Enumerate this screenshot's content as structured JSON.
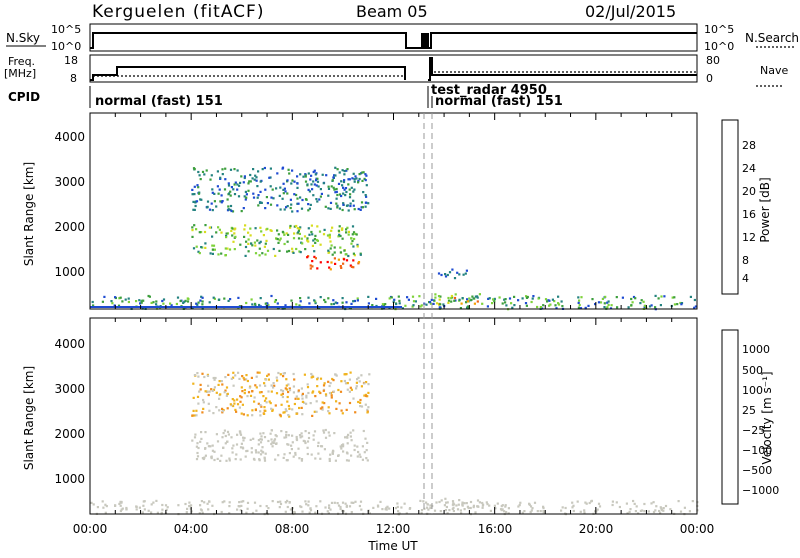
{
  "header": {
    "station": "Kerguelen (fitACF)",
    "beam": "Beam 05",
    "date": "02/Jul/2015"
  },
  "top_panels": {
    "nsky_label": "N.Sky",
    "nsearch_label": "N.Search",
    "noise_ticks": [
      "10^5",
      "10^0"
    ],
    "freq_label": "Freq.",
    "freq_unit": "[MHz]",
    "freq_ticks": [
      "18",
      "8"
    ],
    "nave_label": "Nave",
    "nave_ticks": [
      "80",
      "0"
    ],
    "cpid_label": "CPID",
    "cpid_segments": [
      {
        "label": "normal (fast) 151",
        "start_hour": 0.0
      },
      {
        "label": "test_radar 4950",
        "start_hour": 13.2
      },
      {
        "label": "normal (fast) 151",
        "start_hour": 13.5
      }
    ]
  },
  "power_panel": {
    "ylabel": "Slant Range [km]",
    "yticks": [
      "4000",
      "3000",
      "2000",
      "1000"
    ],
    "colorbar_label": "Power [dB]",
    "colorbar_ticks": [
      "28",
      "24",
      "20",
      "16",
      "12",
      "8",
      "4"
    ],
    "colors": [
      "#0000ff",
      "#1e4bd2",
      "#23827f",
      "#3c9e3c",
      "#7ed23a",
      "#d7dc1e",
      "#f5a000",
      "#f06414",
      "#ff0000"
    ]
  },
  "velocity_panel": {
    "ylabel": "Slant Range [km]",
    "yticks": [
      "4000",
      "3000",
      "2000",
      "1000"
    ],
    "colorbar_label": "Velocity [m s⁻¹]",
    "colorbar_ticks": [
      "1000",
      "500",
      "100",
      "25",
      "−25",
      "−100",
      "−500",
      "−1000"
    ],
    "colors": [
      "#1e4bd2",
      "#2d6e9b",
      "#3c9e3c",
      "#7ed23a",
      "#c8c8be",
      "#f0b41e",
      "#f08c1e",
      "#f05014",
      "#ff0000"
    ]
  },
  "x_axis": {
    "xlabel": "Time UT",
    "ticks": [
      "00:00",
      "04:00",
      "08:00",
      "12:00",
      "16:00",
      "20:00",
      "00:00"
    ]
  },
  "chart_data": [
    {
      "type": "line",
      "name": "noise",
      "x_hours": [
        0,
        12.7,
        13.1,
        13.5,
        24
      ],
      "nsky_level": "near 10^5 from 00:00 to 12:40, gap, then near 10^5 to 24:00",
      "ylim_log10": [
        0,
        5
      ]
    },
    {
      "type": "line",
      "name": "frequency_nave",
      "freq_mhz": {
        "x": [
          0,
          1,
          1.01,
          12.7,
          13.5,
          24
        ],
        "y": [
          10,
          10,
          12,
          12,
          10,
          10
        ]
      },
      "nave": {
        "x": [
          0,
          12.7,
          13.5,
          24
        ],
        "y": [
          20,
          20,
          20,
          20
        ]
      },
      "freq_ylim": [
        8,
        18
      ],
      "nave_ylim": [
        0,
        80
      ]
    },
    {
      "type": "heatmap",
      "name": "power",
      "x_range_hours": [
        0,
        24
      ],
      "y_range_km": [
        180,
        4600
      ],
      "z_range_db": [
        0,
        30
      ],
      "blobs": [
        {
          "x": [
            4.0,
            10.7
          ],
          "y": [
            1400,
            2100
          ],
          "z": [
            8,
            20
          ]
        },
        {
          "x": [
            8.5,
            10.6
          ],
          "y": [
            1100,
            1400
          ],
          "z": [
            22,
            30
          ]
        },
        {
          "x": [
            4.0,
            11.0
          ],
          "y": [
            2400,
            3400
          ],
          "z": [
            4,
            12
          ]
        },
        {
          "x": [
            0.0,
            24.0
          ],
          "y": [
            200,
            500
          ],
          "z": [
            4,
            16
          ]
        },
        {
          "x": [
            13.6,
            15.5
          ],
          "y": [
            300,
            550
          ],
          "z": [
            8,
            24
          ]
        },
        {
          "x": [
            13.6,
            15.0
          ],
          "y": [
            900,
            1100
          ],
          "z": [
            4,
            10
          ]
        }
      ]
    },
    {
      "type": "heatmap",
      "name": "velocity",
      "x_range_hours": [
        0,
        24
      ],
      "y_range_km": [
        180,
        4600
      ],
      "z_range_ms": [
        -1000,
        1000
      ],
      "blobs": [
        {
          "x": [
            4.0,
            11.0
          ],
          "y": [
            1400,
            2100
          ],
          "z": [
            -25,
            25
          ]
        },
        {
          "x": [
            0.0,
            24.0
          ],
          "y": [
            200,
            500
          ],
          "z": [
            -100,
            -25
          ]
        },
        {
          "x": [
            13.6,
            15.5
          ],
          "y": [
            300,
            550
          ],
          "z": [
            25,
            100
          ]
        },
        {
          "x": [
            4.0,
            11.0
          ],
          "y": [
            2400,
            3400
          ],
          "z": [
            -500,
            100
          ]
        }
      ]
    }
  ]
}
